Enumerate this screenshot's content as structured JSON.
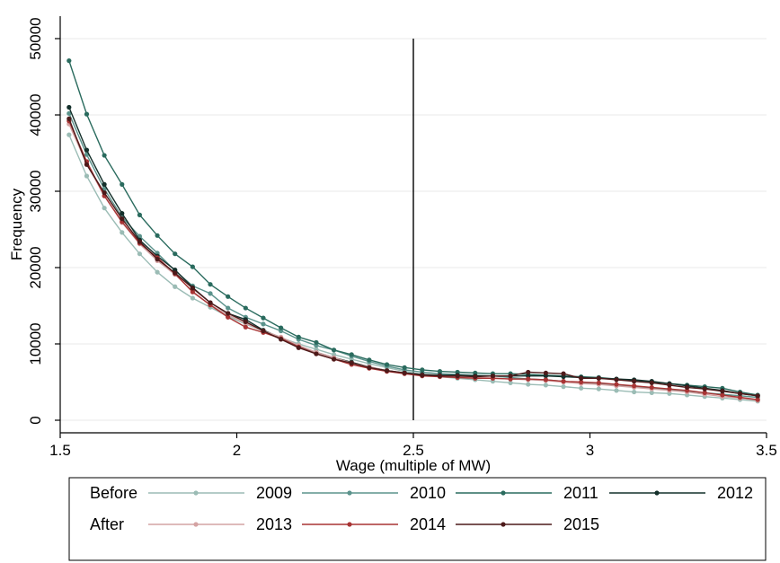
{
  "chart_data": {
    "type": "line",
    "xlabel": "Wage (multiple of MW)",
    "ylabel": "Frequency",
    "xlim": [
      1.5,
      3.5
    ],
    "ylim": [
      0,
      50000
    ],
    "xticks": [
      1.5,
      2,
      2.5,
      3,
      3.5
    ],
    "xtick_labels": [
      "1.5",
      "2",
      "2.5",
      "3",
      "3.5"
    ],
    "yticks": [
      0,
      10000,
      20000,
      30000,
      40000,
      50000
    ],
    "ytick_labels": [
      "0",
      "10000",
      "20000",
      "30000",
      "40000",
      "50000"
    ],
    "grid": true,
    "reference_line_x": 2.5,
    "legend_position": "bottom",
    "legend_rows": [
      {
        "label": "Before",
        "series": [
          "2009",
          "2010",
          "2011",
          "2012"
        ]
      },
      {
        "label": "After",
        "series": [
          "2013",
          "2014",
          "2015"
        ]
      }
    ],
    "x": [
      1.525,
      1.575,
      1.625,
      1.675,
      1.725,
      1.775,
      1.825,
      1.875,
      1.925,
      1.975,
      2.025,
      2.075,
      2.125,
      2.175,
      2.225,
      2.275,
      2.325,
      2.375,
      2.425,
      2.475,
      2.525,
      2.575,
      2.625,
      2.675,
      2.725,
      2.775,
      2.825,
      2.875,
      2.925,
      2.975,
      3.025,
      3.075,
      3.125,
      3.175,
      3.225,
      3.275,
      3.325,
      3.375,
      3.425,
      3.475
    ],
    "series": [
      {
        "name": "2009",
        "color": "#9bbcb5",
        "values": [
          37400,
          32000,
          27800,
          24600,
          21800,
          19400,
          17500,
          16000,
          14800,
          13600,
          12600,
          11700,
          10800,
          10000,
          9300,
          8600,
          8000,
          7400,
          6900,
          6400,
          6000,
          5700,
          5500,
          5300,
          5100,
          4900,
          4700,
          4600,
          4400,
          4200,
          4100,
          3900,
          3700,
          3600,
          3500,
          3300,
          3100,
          2900,
          2700,
          2500
        ]
      },
      {
        "name": "2010",
        "color": "#5b938c",
        "values": [
          40200,
          34800,
          30300,
          26600,
          24100,
          21900,
          19600,
          17600,
          16600,
          14700,
          13500,
          12600,
          11700,
          10600,
          9800,
          9200,
          8400,
          7700,
          7100,
          6600,
          6300,
          6100,
          6000,
          5900,
          5800,
          5600,
          5400,
          5300,
          5100,
          4900,
          4800,
          4600,
          4400,
          4200,
          4000,
          3800,
          3600,
          3400,
          3200,
          3000
        ]
      },
      {
        "name": "2011",
        "color": "#2a6b5e",
        "values": [
          47100,
          40100,
          34700,
          30900,
          26900,
          24200,
          21800,
          20100,
          17800,
          16200,
          14700,
          13400,
          12100,
          10900,
          10200,
          9200,
          8600,
          7900,
          7300,
          6900,
          6600,
          6400,
          6300,
          6200,
          6100,
          6100,
          6000,
          5900,
          5800,
          5700,
          5600,
          5400,
          5200,
          5000,
          4800,
          4600,
          4400,
          4200,
          3700,
          3300
        ]
      },
      {
        "name": "2012",
        "color": "#14302b",
        "values": [
          41000,
          35400,
          30900,
          27100,
          23600,
          21500,
          19700,
          17400,
          15400,
          14000,
          13200,
          11800,
          10800,
          9700,
          8900,
          8200,
          7600,
          7000,
          6500,
          6200,
          6000,
          5900,
          5900,
          5800,
          5800,
          5800,
          5800,
          5800,
          5700,
          5600,
          5500,
          5400,
          5300,
          5100,
          4800,
          4500,
          4200,
          3900,
          3500,
          3200
        ]
      },
      {
        "name": "2013",
        "color": "#d4a3a3",
        "values": [
          38800,
          33600,
          29400,
          25900,
          23100,
          20900,
          19100,
          16900,
          15100,
          13800,
          12700,
          11700,
          10900,
          9800,
          8900,
          8200,
          7500,
          7000,
          6500,
          6100,
          5900,
          5800,
          5700,
          5600,
          5500,
          5400,
          5300,
          5200,
          5000,
          4800,
          4700,
          4500,
          4300,
          4100,
          3900,
          3700,
          3400,
          3100,
          2900,
          2600
        ]
      },
      {
        "name": "2014",
        "color": "#a83434",
        "values": [
          39200,
          33900,
          29400,
          26000,
          23200,
          21300,
          19200,
          16800,
          15100,
          13500,
          12200,
          11500,
          10700,
          9600,
          8700,
          8000,
          7300,
          6800,
          6400,
          6100,
          5800,
          5700,
          5600,
          5500,
          5500,
          5400,
          5400,
          5300,
          5100,
          5000,
          4900,
          4700,
          4500,
          4300,
          4100,
          3900,
          3600,
          3300,
          3000,
          2700
        ]
      },
      {
        "name": "2015",
        "color": "#4d1a1a",
        "values": [
          39500,
          33500,
          29800,
          26400,
          23400,
          21100,
          19300,
          17300,
          15400,
          14000,
          12900,
          11700,
          10600,
          9500,
          8700,
          8000,
          7500,
          6900,
          6500,
          6200,
          5900,
          5800,
          5800,
          5700,
          5800,
          5800,
          6300,
          6200,
          6100,
          5500,
          5500,
          5300,
          5100,
          4900,
          4600,
          4300,
          4100,
          3800,
          3500,
          3200
        ]
      }
    ]
  }
}
